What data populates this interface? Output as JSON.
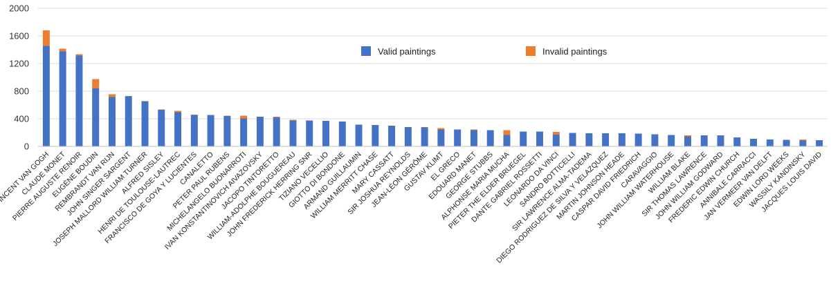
{
  "chart_data": {
    "type": "bar",
    "stacked": true,
    "title": "",
    "xlabel": "",
    "ylabel": "",
    "ylim": [
      0,
      2000
    ],
    "yticks": [
      "0",
      "400",
      "800",
      "1200",
      "1600",
      "2000"
    ],
    "grid": true,
    "legend_position": "top-center",
    "categories": [
      "VINCENT VAN GOGH",
      "CLAUDE MONET",
      "PIERRE AUGUSTE RENOIR",
      "EUGÈNE BOUDIN",
      "REMBRANDT VAN RIJN",
      "JOHN SINGER SARGENT",
      "JOSEPH MALLORD WILLIAM TURNER",
      "ALFRED SISLEY",
      "HENRI DE TOULOUSE-LAUTREC",
      "FRANCISCO DE GOYA Y LUCIENTES",
      "CANALETTO",
      "PETER PAUL RUBENS",
      "MICHELANGELO BUONARROTI",
      "IVAN KONSTANTINOVICH AIVAZOVSKY",
      "JACOPO TINTORETTO",
      "WILLIAM-ADOLPHE BOUGUEREAU",
      "JOHN FREDERICK HERRING SNR",
      "TIZIANO VECELLIO",
      "GIOTTO DI BONDONE",
      "ARMAND GUILLAUMIN",
      "WILLIAM MERRITT CHASE",
      "MARY CASSATT",
      "SIR JOSHUA REYNOLDS",
      "JEAN-LÉON GÉRÔME",
      "GUSTAV KLIMT",
      "EL GRECO",
      "EDOUARD MANET",
      "GEORGE STUBBS",
      "ALPHONSE MARIA MUCHA",
      "PIETER THE ELDER BRUEGEL",
      "DANTE GABRIEL ROSSETTI",
      "LEONARDO DA VINCI",
      "SANDRO BOTTICELLI",
      "SIR LAWRENCE ALMA-TADEMA",
      "DIEGO RODRIGUEZ DE SILVA Y VELAZQUEZ",
      "MARTIN JOHNSON HEADE",
      "CASPAR DAVID FRIEDRICH",
      "CARAVAGGIO",
      "JOHN WILLIAM WATERHOUSE",
      "WILLIAM BLAKE",
      "SIR THOMAS LAWRENCE",
      "JOHN WILLIAM GODWARD",
      "FREDERIC EDWIN CHURCH",
      "ANNIBALE CARRACCI",
      "JAN VERMEER VAN DELFT",
      "EDWIN LORD WEEKS",
      "WASSILY KANDINSKY",
      "JACQUES LOUIS DAVID"
    ],
    "series": [
      {
        "name": "Valid paintings",
        "color": "#4472C4",
        "values": [
          1455,
          1375,
          1315,
          840,
          715,
          725,
          655,
          530,
          495,
          455,
          455,
          440,
          405,
          430,
          420,
          375,
          375,
          370,
          360,
          315,
          310,
          300,
          280,
          275,
          245,
          245,
          235,
          235,
          165,
          215,
          215,
          170,
          195,
          190,
          190,
          190,
          185,
          175,
          165,
          145,
          160,
          160,
          130,
          110,
          100,
          95,
          85,
          90
        ]
      },
      {
        "name": "Invalid paintings",
        "color": "#ED7D31",
        "values": [
          225,
          40,
          20,
          135,
          40,
          5,
          0,
          5,
          20,
          5,
          0,
          5,
          40,
          0,
          10,
          10,
          0,
          0,
          0,
          0,
          0,
          0,
          0,
          5,
          20,
          0,
          10,
          0,
          70,
          0,
          0,
          40,
          0,
          0,
          0,
          0,
          0,
          0,
          0,
          15,
          0,
          0,
          0,
          0,
          0,
          0,
          15,
          0
        ]
      }
    ]
  }
}
